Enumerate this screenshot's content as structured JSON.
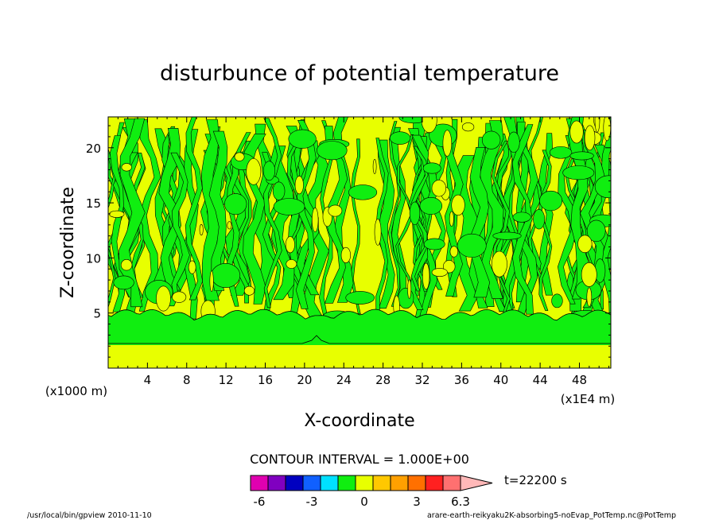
{
  "chart_data": {
    "type": "heatmap",
    "title": "disturbunce of potential temperature",
    "xlabel": "X-coordinate",
    "ylabel": "Z-coordinate",
    "x_unit": "(x1E4 m)",
    "y_unit": "(x1000 m)",
    "xlim": [
      0,
      51.2
    ],
    "ylim": [
      0,
      22.8
    ],
    "x_ticks": [
      4,
      8,
      12,
      16,
      20,
      24,
      28,
      32,
      36,
      40,
      44,
      48
    ],
    "y_ticks": [
      5,
      10,
      15,
      20
    ],
    "contour_interval_label": "CONTOUR INTERVAL = 1.000E+00",
    "time_label": "t=22200 s",
    "colorbar": {
      "tick_labels": [
        "-6",
        "-3",
        "0",
        "3",
        "6.3"
      ],
      "tick_values": [
        -6,
        -3,
        0,
        3,
        6.3
      ],
      "colors": [
        "#e000b0",
        "#8000c0",
        "#0000c0",
        "#1060ff",
        "#00e0ff",
        "#10ee10",
        "#e8ff00",
        "#ffc800",
        "#ffa000",
        "#ff7000",
        "#ff2020",
        "#ff7070",
        "#ffb8b8"
      ]
    },
    "bands": [
      {
        "z_bottom": 0.0,
        "z_top": 1.8,
        "value": 0.5,
        "color": "#e8ff00"
      },
      {
        "z_bottom": 1.8,
        "z_top": 2.2,
        "value": -0.5,
        "color": "#10ee10"
      },
      {
        "z_bottom": 2.2,
        "z_top": 4.0,
        "value": -0.5,
        "color": "#10ee10"
      },
      {
        "z_bottom": 4.0,
        "z_top": 22.8,
        "value": "mixed -0.5 / 0.5",
        "color": "mixed"
      }
    ]
  },
  "footer": {
    "left": "/usr/local/bin/gpview  2010-11-10",
    "right": "arare-earth-reikyaku2K-absorbing5-noEvap_PotTemp.nc@PotTemp"
  }
}
